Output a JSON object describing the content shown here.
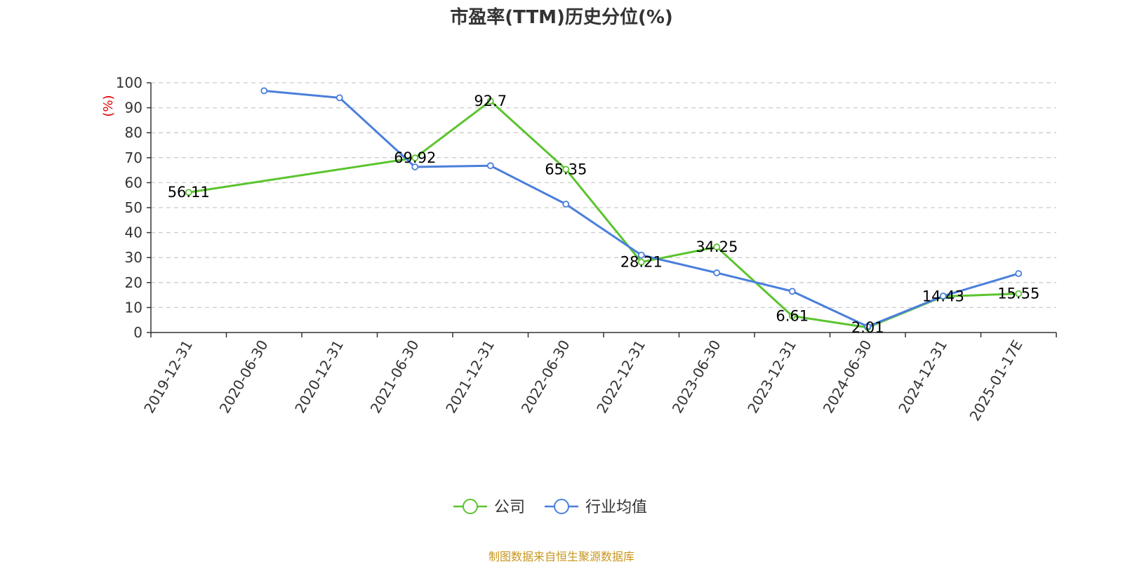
{
  "chart_data": {
    "type": "line",
    "title": "市盈率(TTM)历史分位(%)",
    "ylabel": "(%)",
    "xlabel": "",
    "ylim": [
      0,
      100
    ],
    "yticks": [
      0,
      10,
      20,
      30,
      40,
      50,
      60,
      70,
      80,
      90,
      100
    ],
    "grid": true,
    "legend_position": "bottom-center",
    "categories": [
      "2019-12-31",
      "2020-06-30",
      "2020-12-31",
      "2021-06-30",
      "2021-12-31",
      "2022-06-30",
      "2022-12-31",
      "2023-06-30",
      "2023-12-31",
      "2024-06-30",
      "2024-12-31",
      "2025-01-17E"
    ],
    "series": [
      {
        "name": "公司",
        "color": "#5bc42e",
        "values": [
          56.11,
          null,
          null,
          69.92,
          92.7,
          65.35,
          28.21,
          34.25,
          6.61,
          2.01,
          14.43,
          15.55
        ],
        "labels": [
          "56.11",
          null,
          null,
          "69.92",
          "92.7",
          "65.35",
          "28.21",
          "34.25",
          "6.61",
          "2.01",
          "14.43",
          "15.55"
        ]
      },
      {
        "name": "行业均值",
        "color": "#4a7fdc",
        "values": [
          null,
          96.8,
          94.0,
          66.3,
          66.8,
          51.4,
          31.0,
          23.9,
          16.5,
          2.4,
          14.6,
          23.6
        ],
        "labels": []
      }
    ]
  },
  "footer": {
    "source": "制图数据来自恒生聚源数据库",
    "source_color": "#c8961e"
  }
}
